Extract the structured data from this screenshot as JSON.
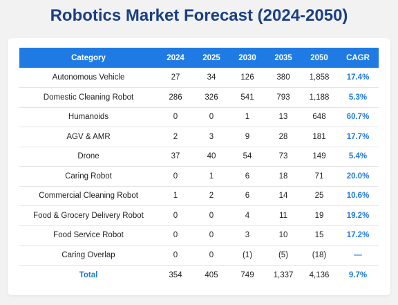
{
  "title": "Robotics Market Forecast (2024-2050)",
  "colors": {
    "title": "#1b3f86",
    "header_bg": "#1f7be3",
    "accent": "#1f7be3"
  },
  "table": {
    "headers": [
      "Category",
      "2024",
      "2025",
      "2030",
      "2035",
      "2050",
      "CAGR"
    ],
    "rows": [
      {
        "category": "Autonomous Vehicle",
        "y2024": "27",
        "y2025": "34",
        "y2030": "126",
        "y2035": "380",
        "y2050": "1,858",
        "cagr": "17.4%"
      },
      {
        "category": "Domestic Cleaning Robot",
        "y2024": "286",
        "y2025": "326",
        "y2030": "541",
        "y2035": "793",
        "y2050": "1,188",
        "cagr": "5.3%"
      },
      {
        "category": "Humanoids",
        "y2024": "0",
        "y2025": "0",
        "y2030": "1",
        "y2035": "13",
        "y2050": "648",
        "cagr": "60.7%"
      },
      {
        "category": "AGV & AMR",
        "y2024": "2",
        "y2025": "3",
        "y2030": "9",
        "y2035": "28",
        "y2050": "181",
        "cagr": "17.7%"
      },
      {
        "category": "Drone",
        "y2024": "37",
        "y2025": "40",
        "y2030": "54",
        "y2035": "73",
        "y2050": "149",
        "cagr": "5.4%"
      },
      {
        "category": "Caring Robot",
        "y2024": "0",
        "y2025": "1",
        "y2030": "6",
        "y2035": "18",
        "y2050": "71",
        "cagr": "20.0%"
      },
      {
        "category": "Commercial Cleaning Robot",
        "y2024": "1",
        "y2025": "2",
        "y2030": "6",
        "y2035": "14",
        "y2050": "25",
        "cagr": "10.6%"
      },
      {
        "category": "Food & Grocery Delivery Robot",
        "y2024": "0",
        "y2025": "0",
        "y2030": "4",
        "y2035": "11",
        "y2050": "19",
        "cagr": "19.2%"
      },
      {
        "category": "Food Service Robot",
        "y2024": "0",
        "y2025": "0",
        "y2030": "3",
        "y2035": "10",
        "y2050": "15",
        "cagr": "17.2%"
      },
      {
        "category": "Caring Overlap",
        "y2024": "0",
        "y2025": "0",
        "y2030": "(1)",
        "y2035": "(5)",
        "y2050": "(18)",
        "cagr": "—"
      },
      {
        "category": "Total",
        "y2024": "354",
        "y2025": "405",
        "y2030": "749",
        "y2035": "1,337",
        "y2050": "4,136",
        "cagr": "9.7%"
      }
    ]
  }
}
